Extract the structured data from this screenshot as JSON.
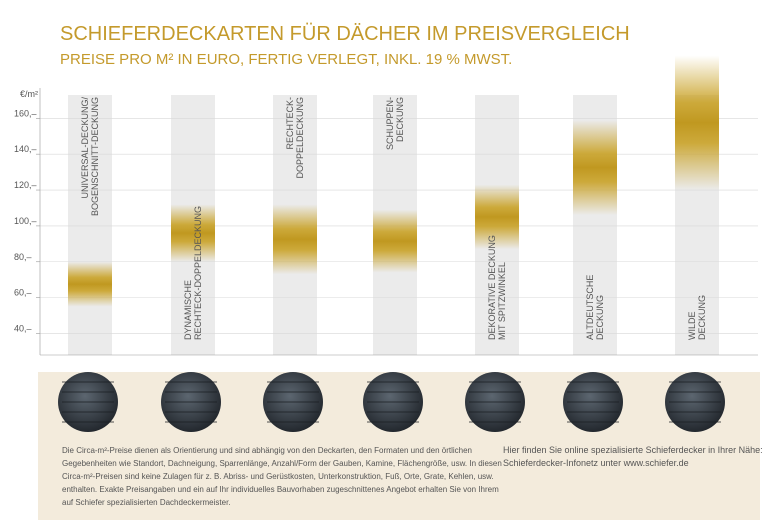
{
  "chart_data": {
    "type": "range",
    "title": "SCHIEFERDECKARTEN FÜR DÄCHER IM PREISVERGLEICH",
    "subtitle": "PREISE PRO M² IN EURO, FERTIG VERLEGT, INKL. 19 % MWST.",
    "y_label": "€/m²",
    "categories": [
      [
        "UNIVERSAL-DECKUNG/",
        "BOGENSCHNITT-DECKUNG"
      ],
      [
        "DYNAMISCHE",
        "RECHTECK-DOPPELDECKUNG"
      ],
      [
        "RECHTECK-",
        "DOPPELDECKUNG"
      ],
      [
        "SCHUPPEN-",
        "DECKUNG"
      ],
      [
        "DEKORATIVE DECKUNG",
        "MIT SPITZWINKEL"
      ],
      [
        "ALTDEUTSCHE",
        "DECKUNG"
      ],
      [
        "WILDE",
        "DECKUNG"
      ]
    ],
    "low": [
      55,
      80,
      73,
      74,
      87,
      106,
      120
    ],
    "high": [
      80,
      112,
      112,
      109,
      123,
      159,
      195
    ],
    "color": "#c9a227",
    "ylim": [
      28,
      173
    ],
    "yticks": [
      {
        "value": 40,
        "label": "40,–"
      },
      {
        "value": 60,
        "label": "60,–"
      },
      {
        "value": 80,
        "label": "80,–"
      },
      {
        "value": 100,
        "label": "100,–"
      },
      {
        "value": 120,
        "label": "120,–"
      },
      {
        "value": 140,
        "label": "140,–"
      },
      {
        "value": 160,
        "label": "160,–"
      }
    ],
    "grid": true
  },
  "footer": {
    "note": [
      "Die Circa-m²-Preise dienen als Orientierung und sind abhängig von den Deckarten, den Formaten und den örtlichen",
      "Gegebenheiten wie Standort, Dachneigung, Sparrenlänge, Anzahl/Form der Gauben, Kamine, Flächengröße, usw. In diesen",
      "Circa-m²-Preisen sind keine Zulagen für z. B. Abriss- und Gerüstkosten, Unterkonstruktion, Fuß, Orte, Grate, Kehlen, usw.",
      "enthalten. Exakte Preisangaben und ein auf Ihr individuelles Bauvorhaben zugeschnittenes Angebot erhalten Sie von Ihrem",
      "auf Schiefer spezialisierten Dachdeckermeister."
    ],
    "link": [
      "Hier finden Sie online spezialisierte Schieferdecker in Ihrer Nähe:",
      "Schieferdecker-Infonetz unter www.schiefer.de"
    ]
  }
}
